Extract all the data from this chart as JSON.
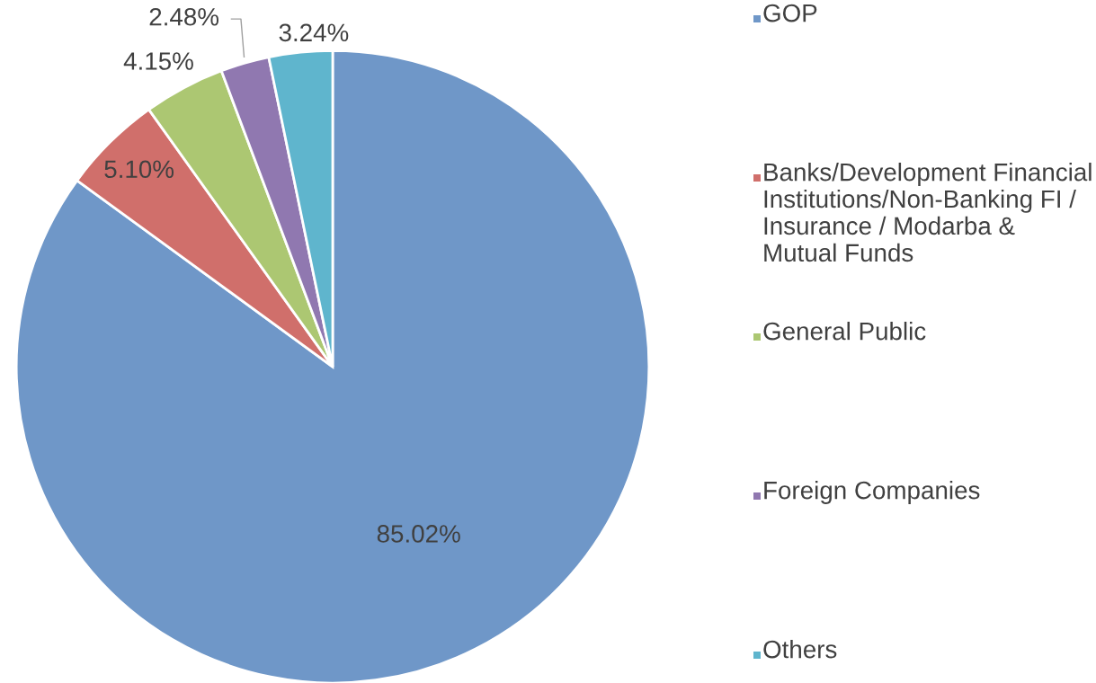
{
  "chart_data": {
    "type": "pie",
    "categories": [
      "GOP",
      "Banks/Development Financial Institutions/Non-Banking FI / Insurance / Modarba & Mutual Funds",
      "General Public",
      "Foreign Companies",
      "Others"
    ],
    "values": [
      85.02,
      5.1,
      4.15,
      2.48,
      3.24
    ],
    "colors": [
      "#6f97c8",
      "#d06f6b",
      "#acc772",
      "#9078b0",
      "#5fb5cd"
    ],
    "value_labels": [
      "85.02%",
      "5.10%",
      "4.15%",
      "2.48%",
      "3.24%"
    ],
    "legend": "right"
  }
}
